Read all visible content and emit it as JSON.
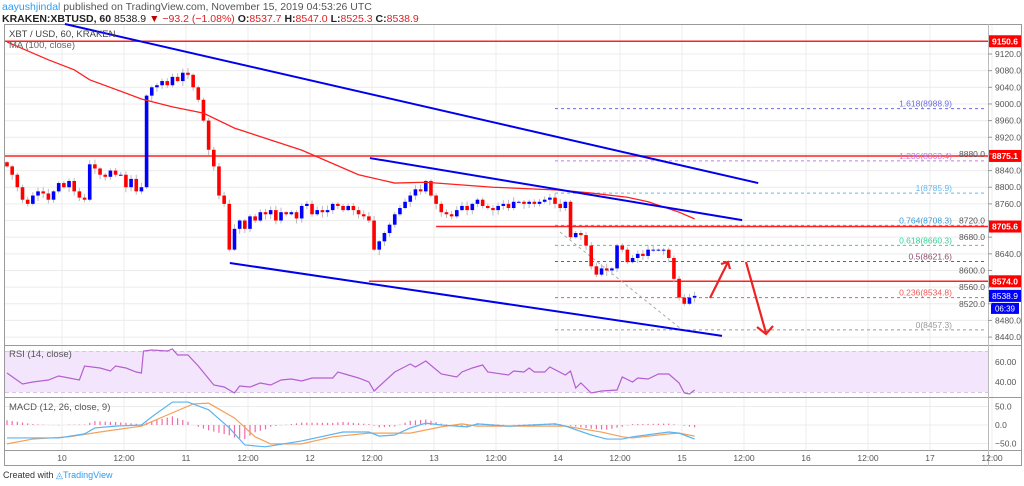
{
  "header": {
    "user": "aayushjindal",
    "published": " published on TradingView.com, November 15, 2019 04:53:26 UTC",
    "symbol": "KRAKEN:XBTUSD, 60",
    "last": "8538.9",
    "change": "−93.2 (−1.08%)",
    "o_label": "O:",
    "o": "8537.7",
    "h_label": "H:",
    "h": "8547.0",
    "l_label": "L:",
    "l": "8525.3",
    "c_label": "C:",
    "c": "8538.9"
  },
  "footer": {
    "created": "Created with",
    "brand": "TradingView"
  },
  "colors": {
    "up": "#0000ff",
    "down": "#ff0000",
    "ma": "#ff2020",
    "trend": "#0000ee",
    "hline": "#ff2020",
    "rsi": "#b45fd0",
    "macd": "#5ab4f0",
    "signal": "#f5a05a",
    "hist": "#f06aa8"
  },
  "chart_data": {
    "type": "candlestick",
    "title": "XBT / USD, 60, KRAKEN",
    "ma_label": "MA (100, close)",
    "ylim": [
      8420,
      9170
    ],
    "y_ticks": [
      9120,
      9080,
      9040,
      9000,
      8960,
      8920,
      8880,
      8840,
      8800,
      8760,
      8720,
      8680,
      8640,
      8600,
      8560,
      8520,
      8480,
      8440
    ],
    "y_tick_labels": [
      "9120.0",
      "9080.0",
      "9040.0",
      "9000.0",
      "8960.0",
      "8920.0",
      "8880.0",
      "8840.0",
      "8800.0",
      "8760.0",
      "8720.0",
      "8680.0",
      "8640.0",
      "8600.0",
      "8560.0",
      "8520.0",
      "8480.0",
      "8440.0"
    ],
    "x_tick_labels": [
      "10",
      "12:00",
      "11",
      "12:00",
      "12",
      "12:00",
      "13",
      "12:00",
      "14",
      "12:00",
      "15",
      "12:00",
      "16",
      "12:00",
      "17",
      "12:00"
    ],
    "first_open": 8860,
    "closes": [
      8850,
      8830,
      8800,
      8770,
      8760,
      8780,
      8790,
      8785,
      8770,
      8790,
      8810,
      8800,
      8815,
      8790,
      8775,
      8770,
      8855,
      8845,
      8830,
      8825,
      8840,
      8830,
      8830,
      8800,
      8820,
      8790,
      8800,
      9020,
      9040,
      9045,
      9055,
      9045,
      9065,
      9055,
      9075,
      9070,
      9040,
      9010,
      8960,
      8890,
      8850,
      8780,
      8760,
      8650,
      8700,
      8720,
      8700,
      8730,
      8720,
      8740,
      8735,
      8745,
      8720,
      8740,
      8735,
      8740,
      8725,
      8755,
      8760,
      8735,
      8745,
      8740,
      8745,
      8760,
      8755,
      8745,
      8755,
      8745,
      8735,
      8730,
      8720,
      8650,
      8670,
      8690,
      8710,
      8735,
      8750,
      8765,
      8780,
      8795,
      8790,
      8815,
      8780,
      8760,
      8740,
      8735,
      8730,
      8745,
      8755,
      8745,
      8760,
      8770,
      8755,
      8750,
      8745,
      8755,
      8760,
      8750,
      8765,
      8765,
      8760,
      8765,
      8760,
      8765,
      8770,
      8775,
      8760,
      8750,
      8765,
      8680,
      8690,
      8685,
      8660,
      8610,
      8590,
      8605,
      8600,
      8605,
      8660,
      8650,
      8620,
      8630,
      8640,
      8635,
      8650,
      8650,
      8650,
      8650,
      8630,
      8580,
      8535,
      8520,
      8535,
      8539
    ],
    "ma100": [
      [
        0,
        9149
      ],
      [
        8,
        9106
      ],
      [
        13,
        9082
      ],
      [
        16,
        9058
      ],
      [
        26,
        9012
      ],
      [
        32,
        8993
      ],
      [
        38,
        8978
      ],
      [
        44,
        8942
      ],
      [
        57,
        8889
      ],
      [
        68,
        8830
      ],
      [
        75,
        8810
      ],
      [
        81,
        8812
      ],
      [
        94,
        8800
      ],
      [
        107,
        8793
      ],
      [
        113,
        8786
      ],
      [
        120,
        8776
      ],
      [
        124,
        8765
      ],
      [
        130,
        8740
      ],
      [
        133,
        8724
      ]
    ],
    "horizontal_levels": [
      {
        "price": 9150.6,
        "label": "9150.6",
        "from_index": -1
      },
      {
        "price": 8875.1,
        "label": "8875.1",
        "from_index": -1
      },
      {
        "price": 8705.6,
        "label": "8705.6",
        "from_index": 83
      },
      {
        "price": 8574.0,
        "label": "8574.0",
        "from_index": 70
      }
    ],
    "trendlines": [
      {
        "from": [
          11.2,
          9192
        ],
        "to": [
          145.3,
          8810
        ]
      },
      {
        "from": [
          70.2,
          8870
        ],
        "to": [
          142.2,
          8721
        ]
      },
      {
        "from": [
          43.1,
          8618
        ],
        "to": [
          138.3,
          8443
        ]
      }
    ],
    "fib_start_index": 106,
    "fib_levels": [
      {
        "label": "1.618(8988.9)",
        "price": 8988.9,
        "color": "#6b6be6"
      },
      {
        "label": "1.236(8863.4)",
        "price": 8863.4,
        "color": "#c47ae6"
      },
      {
        "label": "1(8785.9)",
        "price": 8785.9,
        "color": "#66b8ee"
      },
      {
        "label": "0.764(8708.3)",
        "price": 8708.3,
        "color": "#3c9bd6"
      },
      {
        "label": "0.618(8660.3)",
        "price": 8660.3,
        "color": "#3ccf9a"
      },
      {
        "label": "0.5(8621.6)",
        "price": 8621.6,
        "color": "#8a4f6e"
      },
      {
        "label": "0.236(8534.8)",
        "price": 8534.8,
        "color": "#ee5a5a"
      },
      {
        "label": "0(8457.3)",
        "price": 8457.3,
        "color": "#9a9a9a"
      }
    ],
    "current_price_label": "8538.9",
    "countdown": "06:39",
    "rsi": {
      "label": "RSI (14, close)",
      "ticks": [
        "60.00",
        "40.00"
      ],
      "tick_values": [
        60,
        40
      ],
      "band": [
        70,
        30
      ],
      "points": [
        [
          0,
          49
        ],
        [
          3,
          38
        ],
        [
          5,
          40
        ],
        [
          8,
          42
        ],
        [
          10,
          46
        ],
        [
          12,
          44
        ],
        [
          14,
          42
        ],
        [
          15,
          56
        ],
        [
          18,
          54
        ],
        [
          20,
          51
        ],
        [
          21,
          56
        ],
        [
          23,
          54
        ],
        [
          25,
          50
        ],
        [
          26,
          49
        ],
        [
          26.4,
          71
        ],
        [
          28,
          72
        ],
        [
          31,
          71
        ],
        [
          32,
          73
        ],
        [
          33,
          67
        ],
        [
          35,
          67
        ],
        [
          37,
          56
        ],
        [
          40,
          37
        ],
        [
          42,
          35
        ],
        [
          44,
          29
        ],
        [
          45,
          36
        ],
        [
          47,
          35
        ],
        [
          49,
          39
        ],
        [
          51,
          37
        ],
        [
          53,
          42
        ],
        [
          55,
          43
        ],
        [
          57,
          41
        ],
        [
          59,
          44
        ],
        [
          63,
          44
        ],
        [
          64,
          50
        ],
        [
          66,
          47
        ],
        [
          68,
          44
        ],
        [
          70,
          40
        ],
        [
          71,
          31
        ],
        [
          75,
          50
        ],
        [
          78,
          58
        ],
        [
          79,
          55
        ],
        [
          81,
          61
        ],
        [
          84,
          48
        ],
        [
          87,
          45
        ],
        [
          88,
          50
        ],
        [
          90,
          54
        ],
        [
          92,
          57
        ],
        [
          93,
          50
        ],
        [
          97,
          47
        ],
        [
          98,
          51
        ],
        [
          100,
          50
        ],
        [
          101,
          54
        ],
        [
          102,
          50
        ],
        [
          104,
          50
        ],
        [
          105,
          55
        ],
        [
          108,
          47
        ],
        [
          109,
          51
        ],
        [
          110,
          34
        ],
        [
          111,
          39
        ],
        [
          113,
          29
        ],
        [
          115,
          31
        ],
        [
          118,
          32
        ],
        [
          119,
          45
        ],
        [
          121,
          40
        ],
        [
          122,
          44
        ],
        [
          124,
          43
        ],
        [
          126,
          48
        ],
        [
          128,
          48
        ],
        [
          130,
          39
        ],
        [
          131,
          29
        ],
        [
          132,
          28
        ],
        [
          133,
          32
        ]
      ]
    },
    "macd": {
      "label": "MACD (12, 26, close, 9)",
      "ticks": [
        "50.0",
        "0.0",
        "−50.0"
      ],
      "tick_values": [
        50,
        0,
        -50
      ],
      "macd_line": [
        [
          0,
          -35
        ],
        [
          10,
          -35
        ],
        [
          15,
          -24
        ],
        [
          17,
          -8
        ],
        [
          21,
          -3
        ],
        [
          26,
          0
        ],
        [
          28,
          22
        ],
        [
          32,
          62
        ],
        [
          35,
          62
        ],
        [
          39,
          41
        ],
        [
          43,
          -8
        ],
        [
          46,
          -54
        ],
        [
          50,
          -59
        ],
        [
          57,
          -43
        ],
        [
          65,
          -19
        ],
        [
          70,
          -19
        ],
        [
          72,
          -30
        ],
        [
          75,
          -27
        ],
        [
          78,
          -8
        ],
        [
          81,
          5
        ],
        [
          84,
          0
        ],
        [
          89,
          -5
        ],
        [
          91,
          3
        ],
        [
          97,
          -3
        ],
        [
          106,
          3
        ],
        [
          108,
          -3
        ],
        [
          113,
          -27
        ],
        [
          116,
          -38
        ],
        [
          119,
          -38
        ],
        [
          121,
          -32
        ],
        [
          128,
          -19
        ],
        [
          130,
          -22
        ],
        [
          133,
          -38
        ]
      ],
      "signal_line": [
        [
          0,
          -51
        ],
        [
          5,
          -38
        ],
        [
          12,
          -32
        ],
        [
          18,
          -19
        ],
        [
          26,
          -3
        ],
        [
          31,
          27
        ],
        [
          36,
          57
        ],
        [
          39,
          59
        ],
        [
          44,
          19
        ],
        [
          48,
          -32
        ],
        [
          51,
          -51
        ],
        [
          57,
          -51
        ],
        [
          63,
          -32
        ],
        [
          70,
          -22
        ],
        [
          78,
          -22
        ],
        [
          84,
          -5
        ],
        [
          88,
          3
        ],
        [
          91,
          -3
        ],
        [
          108,
          -3
        ],
        [
          115,
          -19
        ],
        [
          119,
          -32
        ],
        [
          121,
          -35
        ],
        [
          128,
          -24
        ],
        [
          130,
          -22
        ],
        [
          133,
          -30
        ]
      ]
    }
  }
}
